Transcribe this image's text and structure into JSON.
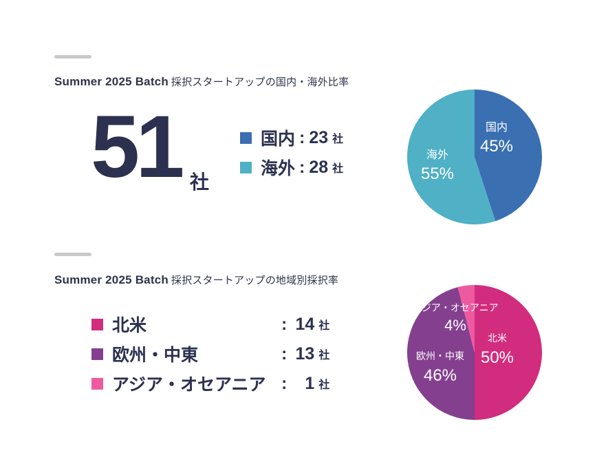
{
  "section1": {
    "title_en": "Summer 2025 Batch",
    "title_jp": "採択スタートアップの国内・海外比率",
    "total": "51",
    "total_unit": "社",
    "legend": [
      {
        "label": "国内",
        "colon": ":",
        "value": "23",
        "unit": "社",
        "color": "#3a6fb2"
      },
      {
        "label": "海外",
        "colon": ":",
        "value": "28",
        "unit": "社",
        "color": "#4fb0c6"
      }
    ]
  },
  "section2": {
    "title_en": "Summer 2025 Batch",
    "title_jp": "採択スタートアップの地域別採択率",
    "legend": [
      {
        "label": "北米",
        "colon": ":",
        "value": "14",
        "unit": "社",
        "color": "#d22c7e"
      },
      {
        "label": "欧州・中東",
        "colon": ":",
        "value": "13",
        "unit": "社",
        "color": "#84408f"
      },
      {
        "label": "アジア・オセアニア",
        "colon": ":",
        "value": "1",
        "unit": "社",
        "color": "#ee5aa0"
      }
    ]
  },
  "chart_data": [
    {
      "type": "pie",
      "title": "",
      "slices": [
        {
          "label": "国内",
          "value": 45,
          "display": "45%",
          "color": "#3a6fb2"
        },
        {
          "label": "海外",
          "value": 55,
          "display": "55%",
          "color": "#4fb0c6"
        }
      ],
      "start_angle_deg": 0,
      "direction": "clockwise"
    },
    {
      "type": "pie",
      "title": "",
      "slices": [
        {
          "label": "北米",
          "value": 50,
          "display": "50%",
          "color": "#d22c7e"
        },
        {
          "label": "欧州・中東",
          "value": 46,
          "display": "46%",
          "color": "#84408f"
        },
        {
          "label": "アジア・オセアニア",
          "value": 4,
          "display": "4%",
          "color": "#ee5aa0"
        }
      ],
      "start_angle_deg": 0,
      "direction": "clockwise"
    }
  ]
}
